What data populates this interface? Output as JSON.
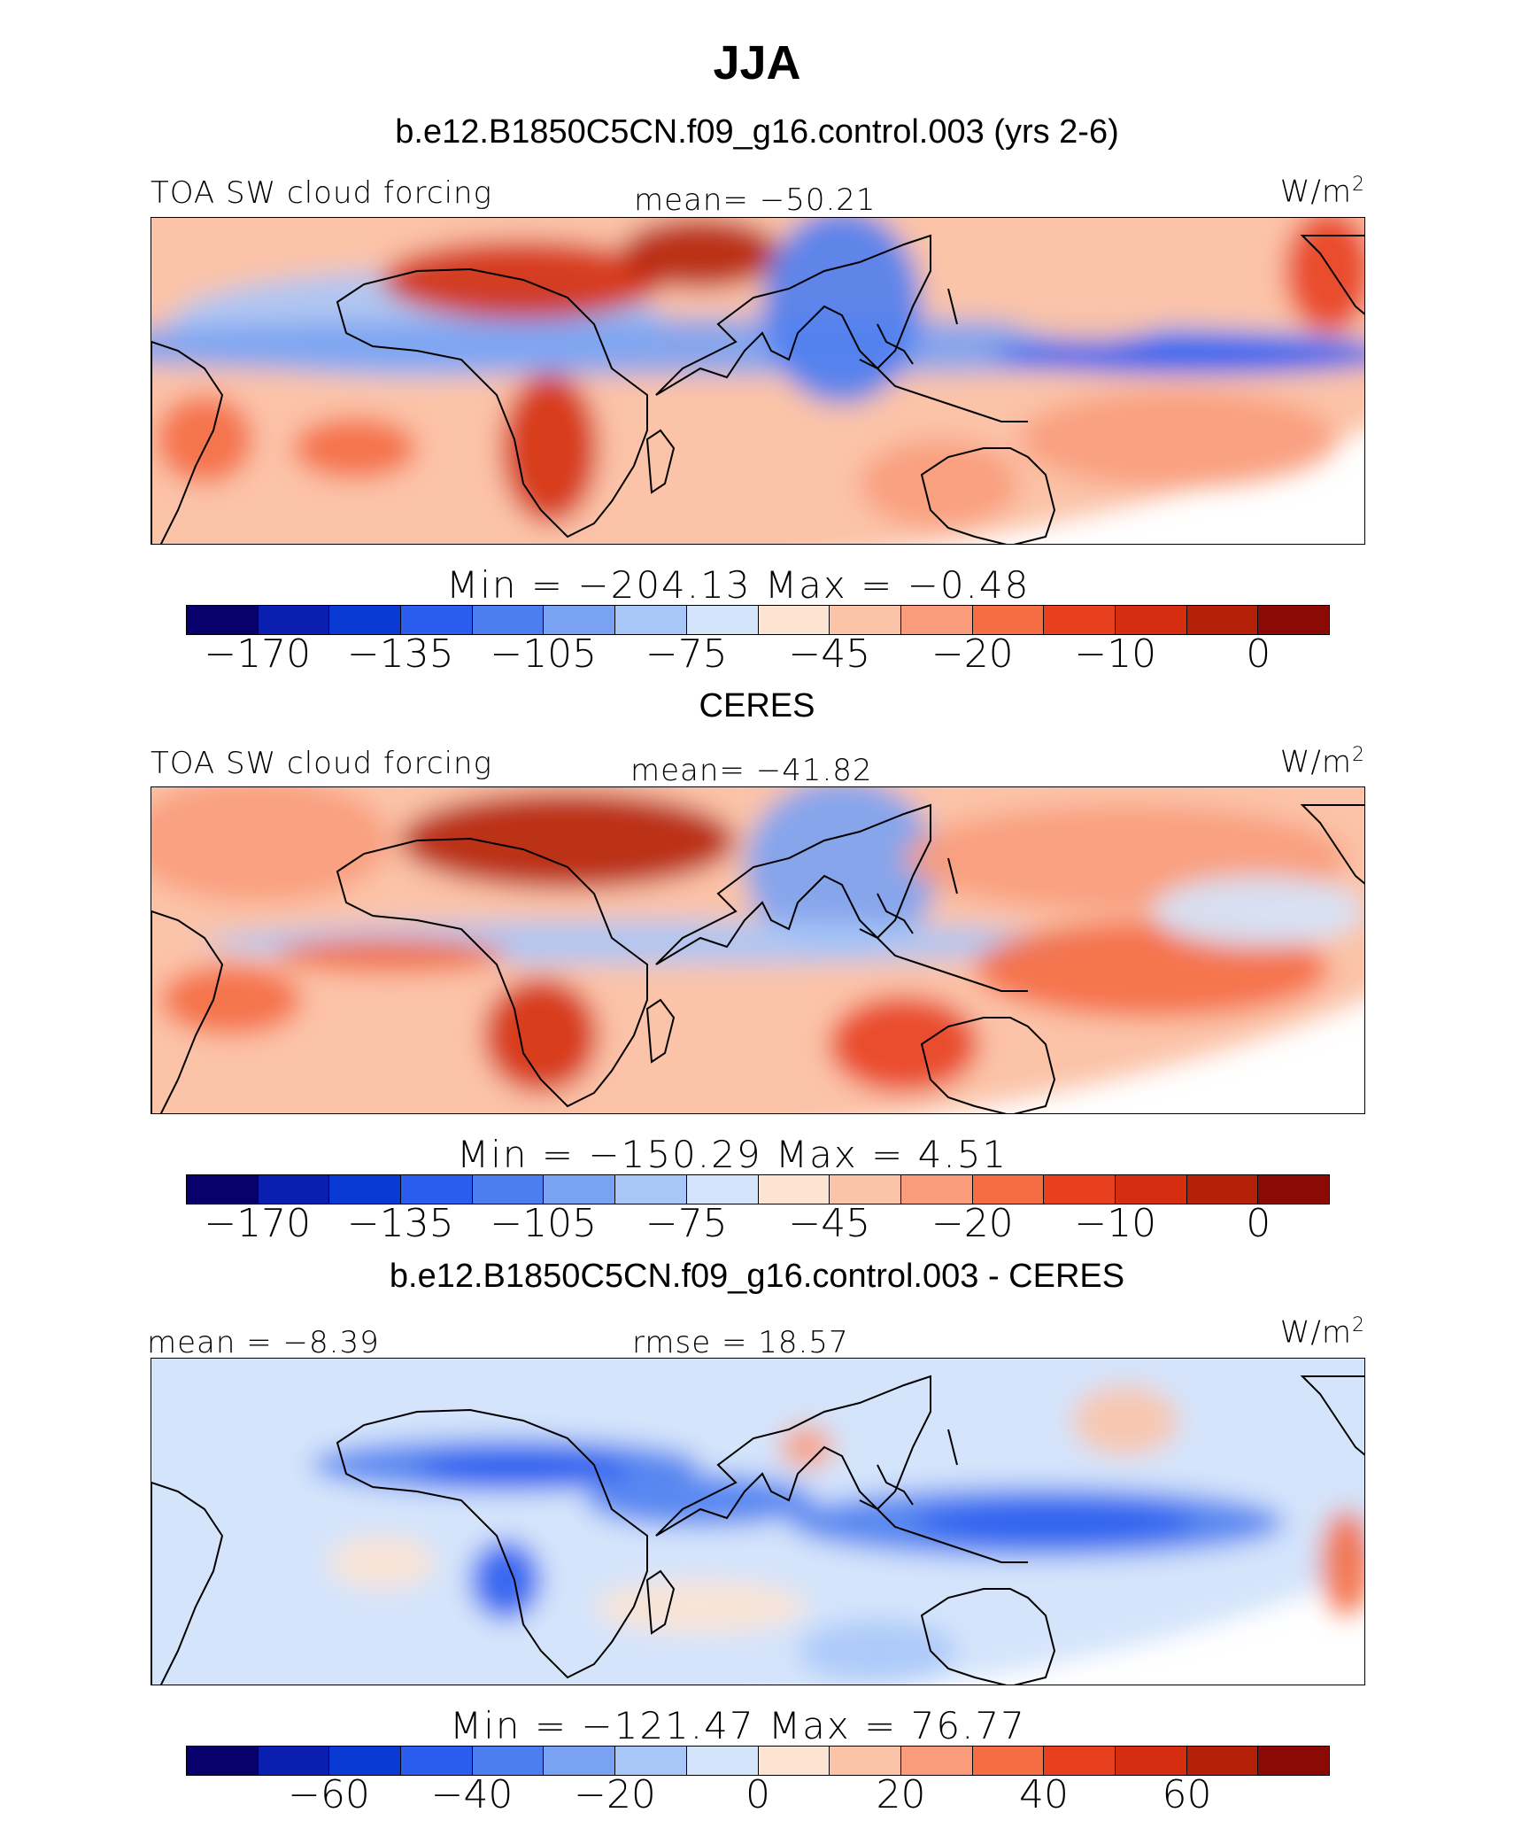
{
  "figure": {
    "title": "JJA",
    "panel_titles": [
      "b.e12.B1850C5CN.f09_g16.control.003 (yrs 2-6)",
      "CERES",
      "b.e12.B1850C5CN.f09_g16.control.003 - CERES"
    ],
    "units": "W/m",
    "units_sup": "2"
  },
  "colors": {
    "field": [
      "#08006b",
      "#0a1fb0",
      "#0a3ad4",
      "#2a5cf0",
      "#4d7ef0",
      "#7aa2f2",
      "#a9c6f8",
      "#d4e4fb",
      "#fde3d2",
      "#fbc3a8",
      "#f89c7b",
      "#f46d43",
      "#e8401f",
      "#d42d10",
      "#b52009",
      "#8c0a05"
    ],
    "diff": [
      "#08006b",
      "#0a1fb0",
      "#0a3ad4",
      "#2a5cf0",
      "#4d7ef0",
      "#7aa2f2",
      "#a9c6f8",
      "#d4e4fb",
      "#fde3d2",
      "#fbc3a8",
      "#f89c7b",
      "#f46d43",
      "#e8401f",
      "#d42d10",
      "#b52009",
      "#8c0a05"
    ]
  },
  "chart_data": [
    {
      "type": "heatmap",
      "title": "b.e12.B1850C5CN.f09_g16.control.003 (yrs 2-6)",
      "variable": "TOA SW cloud forcing",
      "stat_left": "TOA SW cloud forcing",
      "stat_center": "mean=  −50.21",
      "units": "W/m2",
      "mean": -50.21,
      "min": -204.13,
      "max": -0.48,
      "minmax_text": "Min  =  −204.13  Max  =   −0.48",
      "colorbar_ticks": [
        "−170",
        "−135",
        "−105",
        "−75",
        "−45",
        "−20",
        "−10",
        "0"
      ]
    },
    {
      "type": "heatmap",
      "title": "CERES",
      "variable": "TOA SW cloud forcing",
      "stat_left": "TOA SW cloud forcing",
      "stat_center": "mean=  −41.82",
      "units": "W/m2",
      "mean": -41.82,
      "min": -150.29,
      "max": 4.51,
      "minmax_text": "Min  =  −150.29  Max  =     4.51",
      "colorbar_ticks": [
        "−170",
        "−135",
        "−105",
        "−75",
        "−45",
        "−20",
        "−10",
        "0"
      ]
    },
    {
      "type": "heatmap",
      "title": "b.e12.B1850C5CN.f09_g16.control.003 - CERES",
      "stat_left": "mean =   −8.39",
      "stat_center": "rmse =   18.57",
      "units": "W/m2",
      "mean": -8.39,
      "rmse": 18.57,
      "min": -121.47,
      "max": 76.77,
      "minmax_text": "Min  =  −121.47  Max  =   76.77",
      "colorbar_ticks": [
        "−60",
        "−40",
        "−20",
        "0",
        "20",
        "40",
        "60"
      ]
    }
  ]
}
